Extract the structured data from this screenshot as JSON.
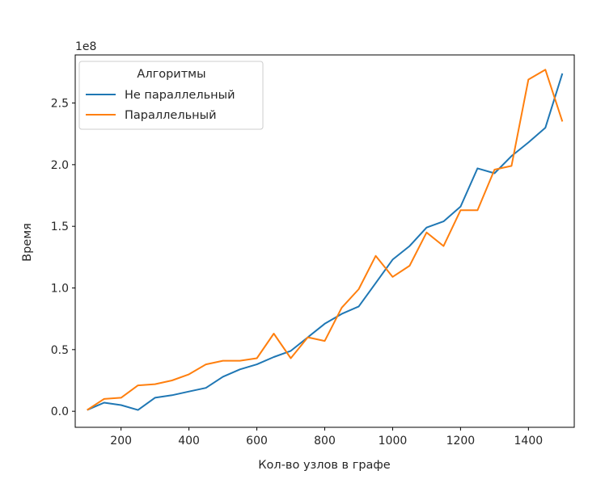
{
  "chart_data": {
    "type": "line",
    "xlabel": "Кол-во узлов в графе",
    "ylabel": "Время",
    "y_offset_label": "1e8",
    "xlim": [
      65,
      1535
    ],
    "ylim": [
      -1.3,
      28.9
    ],
    "x_ticks": [
      200,
      400,
      600,
      800,
      1000,
      1200,
      1400
    ],
    "x_tick_labels": [
      "200",
      "400",
      "600",
      "800",
      "1000",
      "1200",
      "1400"
    ],
    "y_ticks": [
      0,
      5,
      10,
      15,
      20,
      25
    ],
    "y_tick_labels": [
      "0.0",
      "0.5",
      "1.0",
      "1.5",
      "2.0",
      "2.5"
    ],
    "legend": {
      "title": "Алгоритмы",
      "position": "upper-left"
    },
    "x": [
      100,
      150,
      200,
      250,
      300,
      350,
      400,
      450,
      500,
      550,
      600,
      650,
      700,
      750,
      800,
      850,
      900,
      950,
      1000,
      1050,
      1100,
      1150,
      1200,
      1250,
      1300,
      1350,
      1400,
      1450,
      1500
    ],
    "y_unit_note": "values in units of 1e7",
    "series": [
      {
        "name": "Не параллельный",
        "color": "#1f77b4",
        "values": [
          0.1,
          0.7,
          0.5,
          0.1,
          1.1,
          1.3,
          1.6,
          1.9,
          2.8,
          3.4,
          3.8,
          4.4,
          4.9,
          6.0,
          7.1,
          7.9,
          8.5,
          10.4,
          12.3,
          13.4,
          14.9,
          15.4,
          16.6,
          19.7,
          19.3,
          20.7,
          21.8,
          23.0,
          27.4
        ]
      },
      {
        "name": "Параллельный",
        "color": "#ff7f0e",
        "values": [
          0.1,
          1.0,
          1.1,
          2.1,
          2.2,
          2.5,
          3.0,
          3.8,
          4.1,
          4.1,
          4.3,
          6.3,
          4.3,
          6.0,
          5.7,
          8.4,
          9.9,
          12.6,
          10.9,
          11.8,
          14.5,
          13.4,
          16.3,
          16.3,
          19.6,
          19.9,
          26.9,
          27.7,
          23.5
        ]
      }
    ]
  }
}
